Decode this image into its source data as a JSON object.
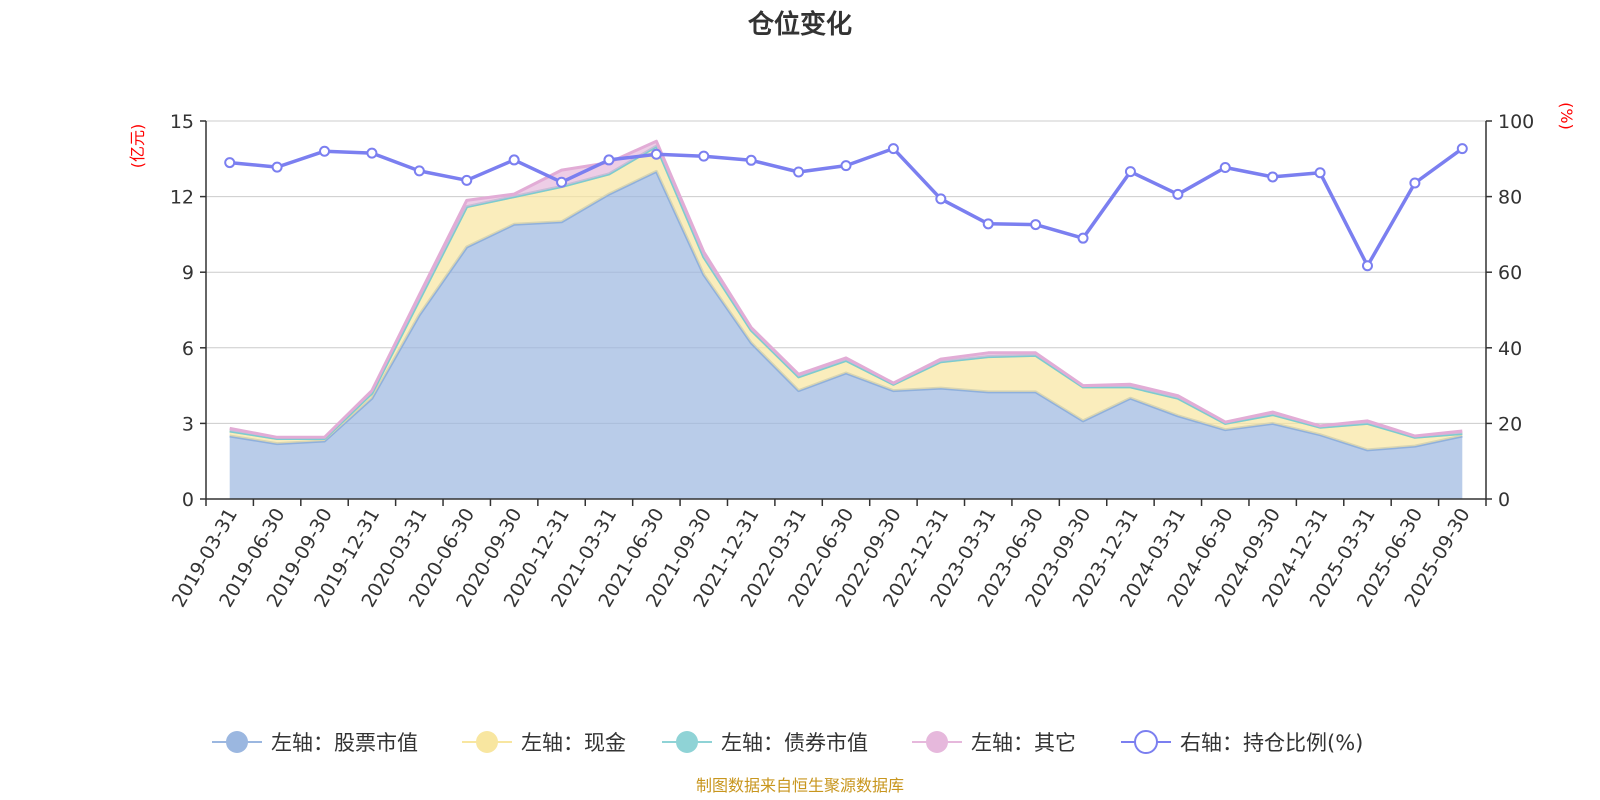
{
  "chart_data": {
    "type": "area",
    "title": "仓位变化",
    "left_axis_unit": "(亿元)",
    "right_axis_unit": "(%)",
    "left_ylim": [
      0,
      15
    ],
    "left_ticks": [
      "0",
      "3",
      "6",
      "9",
      "12",
      "15"
    ],
    "right_ylim": [
      0,
      100
    ],
    "right_ticks": [
      "0",
      "20",
      "40",
      "60",
      "80",
      "100"
    ],
    "categories": [
      "2019-03-31",
      "2019-06-30",
      "2019-09-30",
      "2019-12-31",
      "2020-03-31",
      "2020-06-30",
      "2020-09-30",
      "2020-12-31",
      "2021-03-31",
      "2021-06-30",
      "2021-09-30",
      "2021-12-31",
      "2022-03-31",
      "2022-06-30",
      "2022-09-30",
      "2022-12-31",
      "2023-03-31",
      "2023-06-30",
      "2023-09-30",
      "2023-12-31",
      "2024-03-31",
      "2024-06-30",
      "2024-09-30",
      "2024-12-31",
      "2025-03-31",
      "2025-06-30",
      "2025-09-30"
    ],
    "series": [
      {
        "name": "左轴：股票市值",
        "axis": "left",
        "color": "#9bb7e0",
        "values": [
          2.5,
          2.2,
          2.3,
          4.0,
          7.3,
          10.0,
          10.9,
          11.0,
          12.1,
          13.0,
          8.9,
          6.2,
          4.3,
          5.0,
          4.3,
          4.4,
          4.25,
          4.25,
          3.1,
          4.0,
          3.3,
          2.75,
          3.0,
          2.55,
          1.95,
          2.1,
          2.5
        ]
      },
      {
        "name": "左轴：现金",
        "axis": "left",
        "color": "#f8e6a0",
        "values": [
          0.2,
          0.2,
          0.1,
          0.2,
          0.6,
          1.6,
          1.1,
          1.4,
          0.8,
          1.0,
          0.7,
          0.5,
          0.55,
          0.5,
          0.25,
          1.05,
          1.4,
          1.45,
          1.35,
          0.45,
          0.7,
          0.25,
          0.35,
          0.3,
          1.05,
          0.35,
          0.1
        ]
      },
      {
        "name": "左轴：债券市值",
        "axis": "left",
        "color": "#8fd3d6",
        "values": [
          0,
          0,
          0,
          0,
          0,
          0,
          0,
          0,
          0,
          0,
          0,
          0,
          0,
          0,
          0,
          0,
          0,
          0,
          0,
          0,
          0,
          0,
          0,
          0,
          0,
          0,
          0
        ]
      },
      {
        "name": "左轴：其它",
        "axis": "left",
        "color": "#e6b8dc",
        "values": [
          0.1,
          0.05,
          0.05,
          0.1,
          0.2,
          0.25,
          0.1,
          0.65,
          0.45,
          0.2,
          0.2,
          0.1,
          0.1,
          0.1,
          0.05,
          0.1,
          0.15,
          0.1,
          0.05,
          0.1,
          0.1,
          0.05,
          0.1,
          0.05,
          0.1,
          0.05,
          0.1
        ]
      },
      {
        "name": "右轴：持仓比例(%)",
        "axis": "right",
        "color": "#7b7ff0",
        "values": [
          89.0,
          87.8,
          92.0,
          91.5,
          86.8,
          84.3,
          89.7,
          83.8,
          89.7,
          91.2,
          90.7,
          89.6,
          86.5,
          88.2,
          92.7,
          79.4,
          72.8,
          72.6,
          69.0,
          86.6,
          80.6,
          87.7,
          85.2,
          86.3,
          61.7,
          83.6,
          92.7
        ]
      }
    ],
    "source": "制图数据来自恒生聚源数据库"
  }
}
